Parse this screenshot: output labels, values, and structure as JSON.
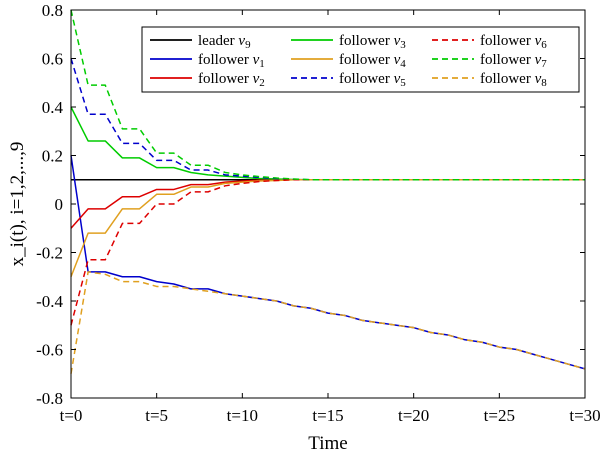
{
  "chart_data": {
    "type": "line",
    "title": "",
    "xlabel": "Time",
    "ylabel": "x_i(t), i=1,2,...,9",
    "xlim": [
      0,
      30
    ],
    "ylim": [
      -0.8,
      0.8
    ],
    "xticks": [
      0,
      5,
      10,
      15,
      20,
      25,
      30
    ],
    "xtick_labels": [
      "t=0",
      "t=5",
      "t=10",
      "t=15",
      "t=20",
      "t=25",
      "t=30"
    ],
    "yticks": [
      0.8,
      0.6,
      0.4,
      0.2,
      0,
      -0.2,
      -0.4,
      -0.6,
      -0.8
    ],
    "ytick_labels": [
      "0.8",
      "0.6",
      "0.4",
      "0.2",
      "0",
      "-0.2",
      "-0.4",
      "-0.6",
      "-0.8"
    ],
    "grid": false,
    "legend_position": "top-right",
    "legend_columns": 3,
    "x": [
      0,
      1,
      2,
      3,
      4,
      5,
      6,
      7,
      8,
      9,
      10,
      11,
      12,
      13,
      14,
      15,
      16,
      17,
      18,
      19,
      20,
      21,
      22,
      23,
      24,
      25,
      26,
      27,
      28,
      29,
      30
    ],
    "series": [
      {
        "name": "leader v9",
        "label_text": "leader",
        "label_var": "v",
        "label_sub": "9",
        "color": "#000000",
        "dash": "solid",
        "values": [
          0.1,
          0.1,
          0.1,
          0.1,
          0.1,
          0.1,
          0.1,
          0.1,
          0.1,
          0.1,
          0.1,
          0.1,
          0.1,
          0.1,
          0.1,
          0.1,
          0.1,
          0.1,
          0.1,
          0.1,
          0.1,
          0.1,
          0.1,
          0.1,
          0.1,
          0.1,
          0.1,
          0.1,
          0.1,
          0.1,
          0.1
        ]
      },
      {
        "name": "follower v1",
        "label_text": "follower",
        "label_var": "v",
        "label_sub": "1",
        "color": "#0000cc",
        "dash": "solid",
        "values": [
          0.2,
          -0.28,
          -0.28,
          -0.3,
          -0.3,
          -0.32,
          -0.33,
          -0.35,
          -0.35,
          -0.37,
          -0.38,
          -0.39,
          -0.4,
          -0.42,
          -0.43,
          -0.45,
          -0.46,
          -0.48,
          -0.49,
          -0.5,
          -0.51,
          -0.53,
          -0.54,
          -0.56,
          -0.57,
          -0.59,
          -0.6,
          -0.62,
          -0.64,
          -0.66,
          -0.68
        ]
      },
      {
        "name": "follower v2",
        "label_text": "follower",
        "label_var": "v",
        "label_sub": "2",
        "color": "#dd0000",
        "dash": "solid",
        "values": [
          -0.1,
          -0.02,
          -0.02,
          0.03,
          0.03,
          0.06,
          0.06,
          0.08,
          0.08,
          0.09,
          0.095,
          0.098,
          0.1,
          0.1,
          0.1,
          0.1,
          0.1,
          0.1,
          0.1,
          0.1,
          0.1,
          0.1,
          0.1,
          0.1,
          0.1,
          0.1,
          0.1,
          0.1,
          0.1,
          0.1,
          0.1
        ]
      },
      {
        "name": "follower v3",
        "label_text": "follower",
        "label_var": "v",
        "label_sub": "3",
        "color": "#00cc00",
        "dash": "solid",
        "values": [
          0.4,
          0.26,
          0.26,
          0.19,
          0.19,
          0.15,
          0.15,
          0.13,
          0.12,
          0.115,
          0.11,
          0.105,
          0.103,
          0.101,
          0.1,
          0.1,
          0.1,
          0.1,
          0.1,
          0.1,
          0.1,
          0.1,
          0.1,
          0.1,
          0.1,
          0.1,
          0.1,
          0.1,
          0.1,
          0.1,
          0.1
        ]
      },
      {
        "name": "follower v4",
        "label_text": "follower",
        "label_var": "v",
        "label_sub": "4",
        "color": "#e0a020",
        "dash": "solid",
        "values": [
          -0.3,
          -0.12,
          -0.12,
          -0.02,
          -0.02,
          0.04,
          0.04,
          0.07,
          0.07,
          0.085,
          0.09,
          0.095,
          0.097,
          0.1,
          0.1,
          0.1,
          0.1,
          0.1,
          0.1,
          0.1,
          0.1,
          0.1,
          0.1,
          0.1,
          0.1,
          0.1,
          0.1,
          0.1,
          0.1,
          0.1,
          0.1
        ]
      },
      {
        "name": "follower v5",
        "label_text": "follower",
        "label_var": "v",
        "label_sub": "5",
        "color": "#0000cc",
        "dash": "dashed",
        "values": [
          0.6,
          0.37,
          0.37,
          0.25,
          0.25,
          0.18,
          0.18,
          0.14,
          0.14,
          0.12,
          0.115,
          0.11,
          0.105,
          0.102,
          0.1,
          0.1,
          0.1,
          0.1,
          0.1,
          0.1,
          0.1,
          0.1,
          0.1,
          0.1,
          0.1,
          0.1,
          0.1,
          0.1,
          0.1,
          0.1,
          0.1
        ]
      },
      {
        "name": "follower v6",
        "label_text": "follower",
        "label_var": "v",
        "label_sub": "6",
        "color": "#dd0000",
        "dash": "dashed",
        "values": [
          -0.5,
          -0.23,
          -0.23,
          -0.08,
          -0.08,
          0.0,
          0.0,
          0.05,
          0.05,
          0.075,
          0.085,
          0.093,
          0.097,
          0.1,
          0.1,
          0.1,
          0.1,
          0.1,
          0.1,
          0.1,
          0.1,
          0.1,
          0.1,
          0.1,
          0.1,
          0.1,
          0.1,
          0.1,
          0.1,
          0.1,
          0.1
        ]
      },
      {
        "name": "follower v7",
        "label_text": "follower",
        "label_var": "v",
        "label_sub": "7",
        "color": "#00cc00",
        "dash": "dashed",
        "values": [
          0.8,
          0.49,
          0.49,
          0.31,
          0.31,
          0.21,
          0.21,
          0.16,
          0.16,
          0.13,
          0.12,
          0.113,
          0.107,
          0.103,
          0.1,
          0.1,
          0.1,
          0.1,
          0.1,
          0.1,
          0.1,
          0.1,
          0.1,
          0.1,
          0.1,
          0.1,
          0.1,
          0.1,
          0.1,
          0.1,
          0.1
        ]
      },
      {
        "name": "follower v8",
        "label_text": "follower",
        "label_var": "v",
        "label_sub": "8",
        "color": "#e0a020",
        "dash": "dashed",
        "values": [
          -0.7,
          -0.28,
          -0.29,
          -0.32,
          -0.32,
          -0.34,
          -0.34,
          -0.35,
          -0.36,
          -0.37,
          -0.38,
          -0.39,
          -0.4,
          -0.42,
          -0.43,
          -0.45,
          -0.46,
          -0.48,
          -0.49,
          -0.5,
          -0.51,
          -0.53,
          -0.54,
          -0.56,
          -0.57,
          -0.59,
          -0.6,
          -0.62,
          -0.64,
          -0.66,
          -0.68
        ]
      }
    ]
  }
}
